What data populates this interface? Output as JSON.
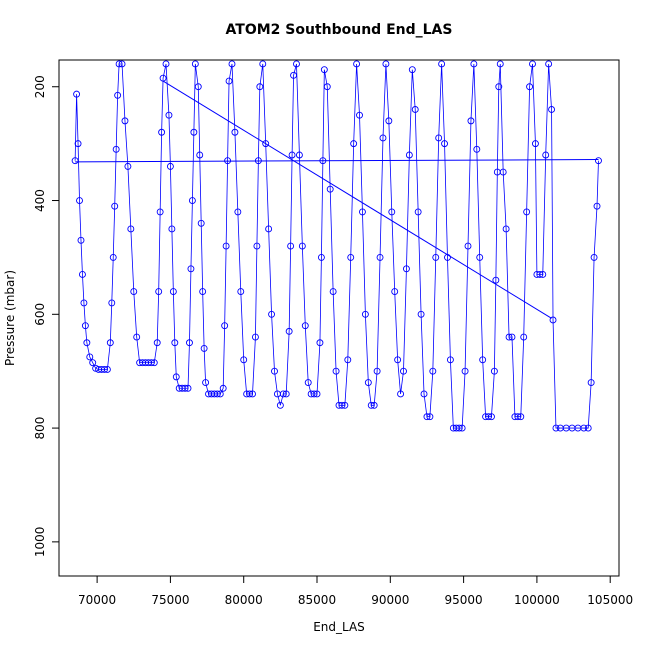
{
  "chart_data": {
    "type": "scatter",
    "title": "ATOM2 Southbound End_LAS",
    "x_label": "End_LAS",
    "y_label": "Pressure (mbar)",
    "xlim": [
      67400,
      105600
    ],
    "ylim": [
      1060,
      153
    ],
    "xticks": [
      70000,
      75000,
      80000,
      85000,
      90000,
      95000,
      100000,
      105000
    ],
    "yticks": [
      200,
      400,
      600,
      800,
      1000
    ],
    "color": "#0000ff",
    "connect": true,
    "x": [
      68500,
      68600,
      68700,
      68800,
      68900,
      69000,
      69100,
      69200,
      69300,
      69500,
      69700,
      69900,
      70100,
      70300,
      70500,
      70700,
      70900,
      71000,
      71100,
      71200,
      71300,
      71400,
      71500,
      71700,
      71900,
      72100,
      72300,
      72500,
      72700,
      72900,
      73100,
      73300,
      73500,
      73700,
      73900,
      74100,
      74200,
      74300,
      74400,
      74500,
      74700,
      74900,
      75000,
      75100,
      75200,
      75300,
      75400,
      75600,
      75800,
      76000,
      76200,
      76300,
      76400,
      76500,
      76600,
      76700,
      76900,
      77000,
      77100,
      77200,
      77300,
      77400,
      77600,
      77800,
      78000,
      78200,
      78400,
      78600,
      78700,
      78800,
      78900,
      79000,
      79200,
      79400,
      79600,
      79800,
      80000,
      80200,
      80400,
      80600,
      80800,
      80900,
      81000,
      81100,
      81300,
      81500,
      81700,
      81900,
      82100,
      82300,
      82500,
      82700,
      82900,
      83100,
      83200,
      83300,
      83400,
      83600,
      83800,
      84000,
      84200,
      84400,
      84600,
      84800,
      85000,
      85200,
      85300,
      85400,
      85500,
      85700,
      85900,
      86100,
      86300,
      86500,
      86700,
      86900,
      87100,
      87300,
      87500,
      87700,
      87900,
      88100,
      88300,
      88500,
      88700,
      88900,
      89100,
      89300,
      89500,
      89700,
      89900,
      90100,
      90300,
      90500,
      90700,
      90900,
      91100,
      91300,
      91500,
      91700,
      91900,
      92100,
      92300,
      92500,
      92700,
      92900,
      93100,
      93300,
      93500,
      93700,
      93900,
      94100,
      94300,
      94500,
      94700,
      94900,
      95100,
      95300,
      95500,
      95700,
      95900,
      96100,
      96300,
      96500,
      96700,
      96900,
      97100,
      97200,
      97300,
      97400,
      97500,
      97700,
      97900,
      98100,
      98300,
      98500,
      98700,
      98900,
      99100,
      99300,
      99500,
      99700,
      99900,
      100000,
      100200,
      100400,
      100600,
      100800,
      101000,
      101100,
      101300,
      101600,
      102000,
      102400,
      102800,
      103200,
      103500,
      103700,
      103900,
      104100,
      104200
    ],
    "values": [
      330,
      213,
      300,
      400,
      470,
      530,
      580,
      620,
      650,
      675,
      685,
      695,
      697,
      697,
      697,
      697,
      650,
      580,
      500,
      410,
      310,
      215,
      160,
      160,
      260,
      340,
      450,
      560,
      640,
      685,
      685,
      685,
      685,
      685,
      685,
      650,
      560,
      420,
      280,
      185,
      160,
      250,
      340,
      450,
      560,
      650,
      710,
      730,
      730,
      730,
      730,
      650,
      520,
      400,
      280,
      160,
      200,
      320,
      440,
      560,
      660,
      720,
      740,
      740,
      740,
      740,
      740,
      730,
      620,
      480,
      330,
      190,
      160,
      280,
      420,
      560,
      680,
      740,
      740,
      740,
      640,
      480,
      330,
      200,
      160,
      300,
      450,
      600,
      700,
      740,
      760,
      740,
      740,
      630,
      480,
      320,
      180,
      160,
      320,
      480,
      620,
      720,
      740,
      740,
      740,
      650,
      500,
      330,
      170,
      200,
      380,
      560,
      700,
      760,
      760,
      760,
      680,
      500,
      300,
      160,
      250,
      420,
      600,
      720,
      760,
      760,
      700,
      500,
      290,
      160,
      260,
      420,
      560,
      680,
      740,
      700,
      520,
      320,
      170,
      240,
      420,
      600,
      740,
      780,
      780,
      700,
      500,
      290,
      160,
      300,
      500,
      680,
      800,
      800,
      800,
      800,
      700,
      480,
      260,
      160,
      310,
      500,
      680,
      780,
      780,
      780,
      700,
      540,
      350,
      200,
      160,
      350,
      450,
      640,
      640,
      780,
      780,
      780,
      640,
      420,
      200,
      160,
      300,
      530,
      530,
      530,
      320,
      160,
      240,
      610,
      800,
      800,
      800,
      800,
      800,
      800,
      800,
      720,
      500,
      410,
      330
    ],
    "fit_lines": [
      {
        "x": [
          74500,
          101000
        ],
        "y": [
          190,
          607
        ]
      },
      {
        "x": [
          68500,
          104200
        ],
        "y": [
          332,
          328
        ]
      }
    ]
  }
}
